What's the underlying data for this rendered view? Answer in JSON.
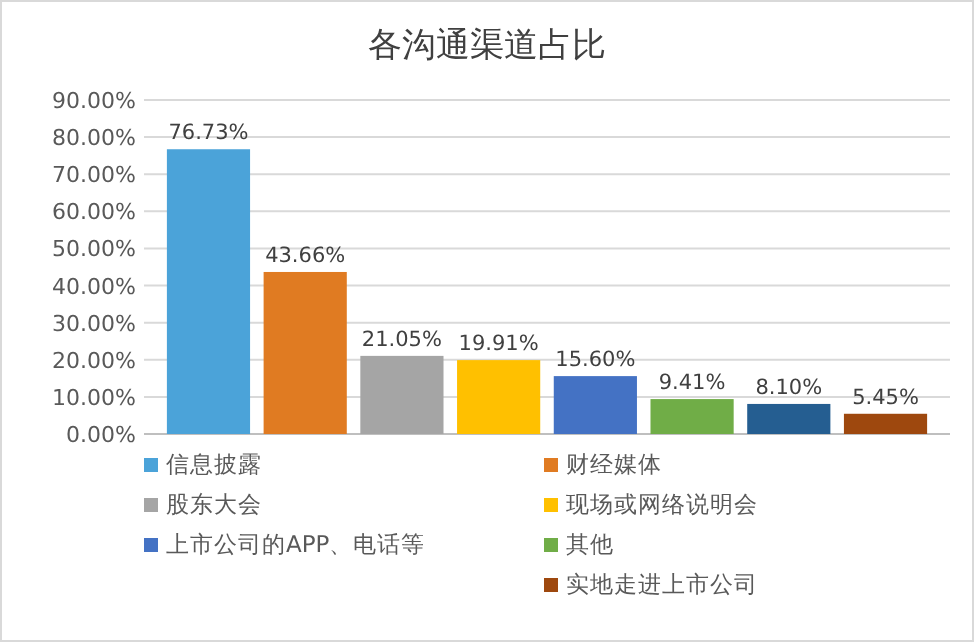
{
  "chart_data": {
    "type": "bar",
    "title": "各沟通渠道占比",
    "categories": [
      null
    ],
    "series": [
      {
        "name": "信息披露",
        "color": "#4ba3d9",
        "values": [
          76.73
        ],
        "value_labels": [
          "76.73%"
        ]
      },
      {
        "name": "财经媒体",
        "color": "#e07b22",
        "values": [
          43.66
        ],
        "value_labels": [
          "43.66%"
        ]
      },
      {
        "name": "股东大会",
        "color": "#a5a5a5",
        "values": [
          21.05
        ],
        "value_labels": [
          "21.05%"
        ]
      },
      {
        "name": "现场或网络说明会",
        "color": "#ffc000",
        "values": [
          19.91
        ],
        "value_labels": [
          "19.91%"
        ]
      },
      {
        "name": "上市公司的APP、电话等",
        "color": "#4472c4",
        "values": [
          15.6
        ],
        "value_labels": [
          "15.60%"
        ]
      },
      {
        "name": "其他",
        "color": "#70ad47",
        "values": [
          9.41
        ],
        "value_labels": [
          "9.41%"
        ]
      },
      {
        "color": "#255e91",
        "values": [
          8.1
        ],
        "value_labels": [
          "8.10%"
        ]
      },
      {
        "name": "实地走进上市公司",
        "color": "#9e480e",
        "values": [
          5.45
        ],
        "value_labels": [
          "5.45%"
        ]
      }
    ],
    "ylim": [
      0,
      90
    ],
    "yticks": [
      {
        "value": 0,
        "label": "0.00%"
      },
      {
        "value": 10,
        "label": "10.00%"
      },
      {
        "value": 20,
        "label": "20.00%"
      },
      {
        "value": 30,
        "label": "30.00%"
      },
      {
        "value": 40,
        "label": "40.00%"
      },
      {
        "value": 50,
        "label": "50.00%"
      },
      {
        "value": 60,
        "label": "60.00%"
      },
      {
        "value": 70,
        "label": "70.00%"
      },
      {
        "value": 80,
        "label": "80.00%"
      },
      {
        "value": 90,
        "label": "90.00%"
      }
    ],
    "grid": "y",
    "legend": "bottom"
  }
}
